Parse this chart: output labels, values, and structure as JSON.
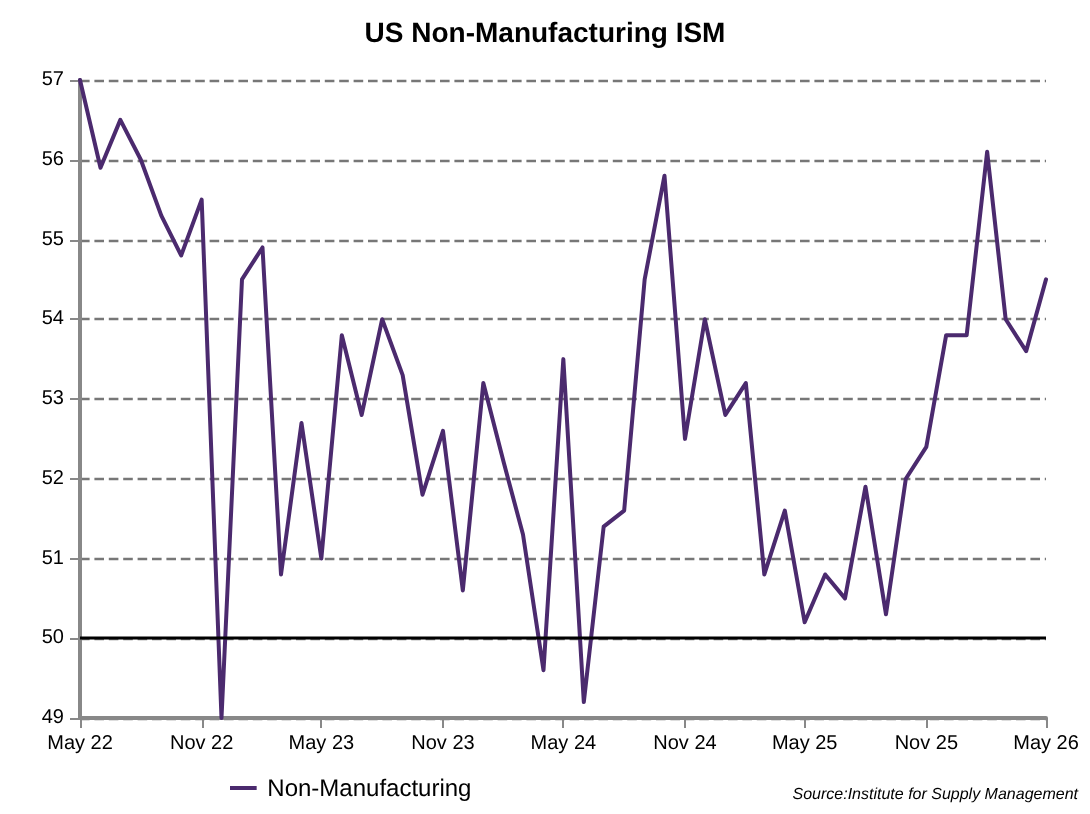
{
  "chart_data": {
    "type": "line",
    "title": "US Non-Manufacturing ISM",
    "x": [
      "2022-05",
      "2022-06",
      "2022-07",
      "2022-08",
      "2022-09",
      "2022-10",
      "2022-11",
      "2022-12",
      "2023-01",
      "2023-02",
      "2023-03",
      "2023-04",
      "2023-05",
      "2023-06",
      "2023-07",
      "2023-08",
      "2023-09",
      "2023-10",
      "2023-11",
      "2023-12",
      "2024-01",
      "2024-02",
      "2024-03",
      "2024-04",
      "2024-05",
      "2024-06",
      "2024-07",
      "2024-08",
      "2024-09",
      "2024-10",
      "2024-11",
      "2024-12",
      "2025-01",
      "2025-02",
      "2025-03",
      "2025-04",
      "2025-05",
      "2025-06",
      "2025-07",
      "2025-08",
      "2025-09",
      "2025-10",
      "2025-11",
      "2025-12",
      "2026-01",
      "2026-02",
      "2026-03",
      "2026-04",
      "2026-05"
    ],
    "series": [
      {
        "name": "Non-Manufacturing",
        "color": "#4b2a6e",
        "values": [
          57.0,
          55.9,
          56.5,
          56.0,
          55.3,
          54.8,
          55.5,
          49.0,
          54.5,
          54.9,
          50.8,
          52.7,
          51.0,
          53.8,
          52.8,
          54.0,
          53.3,
          51.8,
          52.6,
          50.6,
          53.2,
          52.2,
          51.3,
          49.6,
          53.5,
          49.2,
          51.4,
          51.6,
          54.5,
          55.8,
          52.5,
          54.0,
          52.8,
          53.2,
          50.8,
          51.6,
          50.2,
          50.8,
          50.5,
          51.9,
          50.3,
          52.0,
          52.4,
          53.8,
          53.8,
          56.1,
          54.0,
          53.6,
          54.5
        ]
      }
    ],
    "xlim": [
      "2022-05",
      "2026-05"
    ],
    "xticks": [
      {
        "value": "2022-05",
        "label": "May 22"
      },
      {
        "value": "2022-11",
        "label": "Nov 22"
      },
      {
        "value": "2023-05",
        "label": "May 23"
      },
      {
        "value": "2023-11",
        "label": "Nov 23"
      },
      {
        "value": "2024-05",
        "label": "May 24"
      },
      {
        "value": "2024-11",
        "label": "Nov 24"
      },
      {
        "value": "2025-05",
        "label": "May 25"
      },
      {
        "value": "2025-11",
        "label": "Nov 25"
      },
      {
        "value": "2026-05",
        "label": "May 26"
      }
    ],
    "ylim": [
      49,
      57
    ],
    "yticks": [
      49,
      50,
      51,
      52,
      53,
      54,
      55,
      56,
      57
    ],
    "grid": "y",
    "legend": "bottom left",
    "marker": "none",
    "line_style": "solid",
    "ref_lines": [
      {
        "axis": "y",
        "value": 50,
        "color": "#000000",
        "line_style": "solid"
      }
    ],
    "annotations": [
      "Source:Institute for Supply Management"
    ]
  }
}
